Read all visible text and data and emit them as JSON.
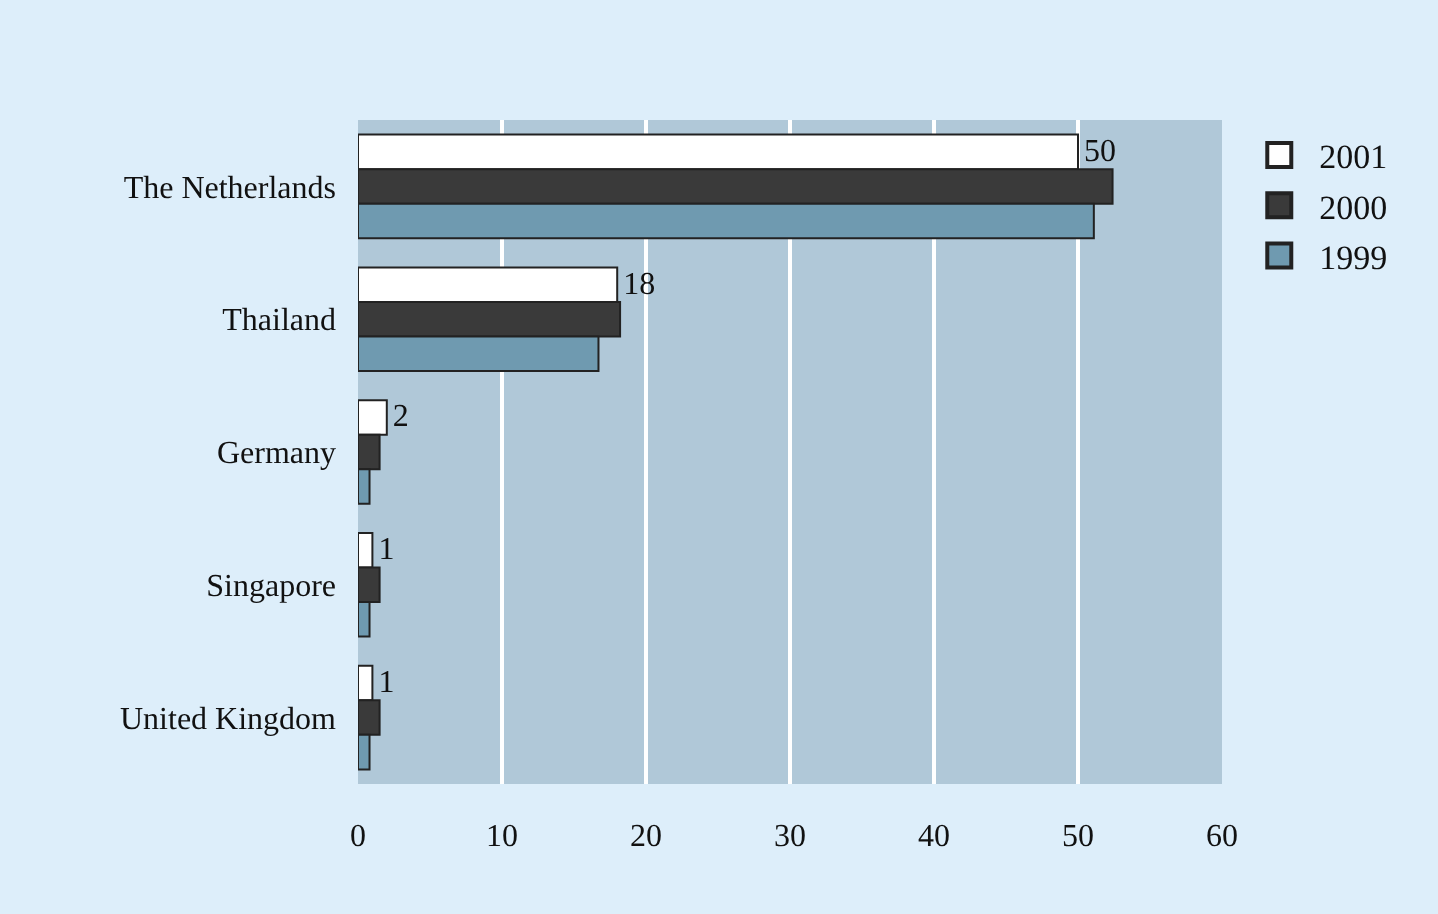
{
  "chart_data": {
    "type": "bar",
    "orientation": "horizontal",
    "categories": [
      "The Netherlands",
      "Thailand",
      "Germany",
      "Singapore",
      "United Kingdom"
    ],
    "series": [
      {
        "name": "2001",
        "color": "#ffffff",
        "values": [
          50,
          18,
          2,
          1,
          1
        ],
        "value_labels": [
          "50",
          "18",
          "2",
          "1",
          "1"
        ]
      },
      {
        "name": "2000",
        "color": "#3a3a3a",
        "values": [
          52.4,
          18.2,
          1.5,
          1.5,
          1.5
        ]
      },
      {
        "name": "1999",
        "color": "#6f9ab0",
        "values": [
          51.1,
          16.7,
          0.8,
          0.8,
          0.8
        ]
      }
    ],
    "xlim": [
      0,
      60
    ],
    "xticks": [
      0,
      10,
      20,
      30,
      40,
      50,
      60
    ],
    "grid": "x",
    "legend": "top right"
  }
}
